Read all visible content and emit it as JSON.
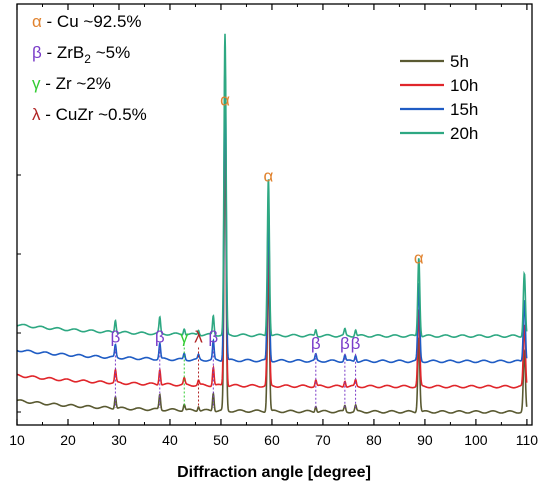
{
  "chart_data": {
    "type": "line",
    "xlabel": "Diffraction angle  [degree]",
    "ylabel": "",
    "xlim": [
      10,
      111
    ],
    "ylim": [
      0,
      100
    ],
    "x_ticks": [
      "10",
      "20",
      "30",
      "40",
      "50",
      "60",
      "70",
      "80",
      "90",
      "100",
      "110"
    ],
    "grid": false,
    "legend_position": "top-right",
    "series": [
      {
        "name": "5h",
        "color": "#5a5a32",
        "baseline": 0
      },
      {
        "name": "10h",
        "color": "#e0262b",
        "baseline": 8
      },
      {
        "name": "15h",
        "color": "#1f5cc4",
        "baseline": 16
      },
      {
        "name": "20h",
        "color": "#2ea882",
        "baseline": 24
      }
    ],
    "peaks": [
      {
        "x": 29.3,
        "height": 4
      },
      {
        "x": 38.0,
        "height": 5
      },
      {
        "x": 42.8,
        "height": 2
      },
      {
        "x": 45.6,
        "height": 1.5
      },
      {
        "x": 48.5,
        "height": 6
      },
      {
        "x": 50.8,
        "height": 95
      },
      {
        "x": 59.3,
        "height": 50
      },
      {
        "x": 68.6,
        "height": 2
      },
      {
        "x": 74.3,
        "height": 2
      },
      {
        "x": 76.4,
        "height": 2
      },
      {
        "x": 88.8,
        "height": 25
      },
      {
        "x": 109.5,
        "height": 20
      }
    ],
    "phase_legend": [
      {
        "symbol": "α",
        "text": " - Cu ~92.5%",
        "color": "#e0822e"
      },
      {
        "symbol": "β",
        "text": " - ZrB",
        "sub": "2",
        "text_after": " ~5%",
        "color": "#7a3cc9"
      },
      {
        "symbol": "γ",
        "text": " - Zr ~2%",
        "color": "#33cc33"
      },
      {
        "symbol": "λ",
        "text": " - CuZr ~0.5%",
        "color": "#b02424"
      }
    ],
    "annotations": [
      {
        "label": "α",
        "x": 50.8,
        "level": 97,
        "color": "#e0822e"
      },
      {
        "label": "α",
        "x": 59.3,
        "level": 73,
        "color": "#e0822e"
      },
      {
        "label": "α",
        "x": 88.8,
        "level": 47,
        "color": "#e0822e"
      },
      {
        "label": "β",
        "x": 29.3,
        "level": 22,
        "color": "#7a3cc9",
        "line_to": 0
      },
      {
        "label": "β",
        "x": 38.0,
        "level": 22,
        "color": "#7a3cc9",
        "line_to": 0
      },
      {
        "label": "γ",
        "x": 42.8,
        "level": 22,
        "color": "#33cc33",
        "line_to": 0
      },
      {
        "label": "λ",
        "x": 45.6,
        "level": 22,
        "color": "#b02424",
        "line_to": 0
      },
      {
        "label": "β",
        "x": 48.5,
        "level": 22,
        "color": "#7a3cc9",
        "line_to": 0
      },
      {
        "label": "β",
        "x": 68.6,
        "level": 20,
        "color": "#7a3cc9",
        "line_to": 0
      },
      {
        "label": "β",
        "x": 74.3,
        "level": 20,
        "color": "#7a3cc9",
        "line_to": 0
      },
      {
        "label": "β",
        "x": 76.4,
        "level": 20,
        "color": "#7a3cc9",
        "line_to": 0
      }
    ]
  }
}
